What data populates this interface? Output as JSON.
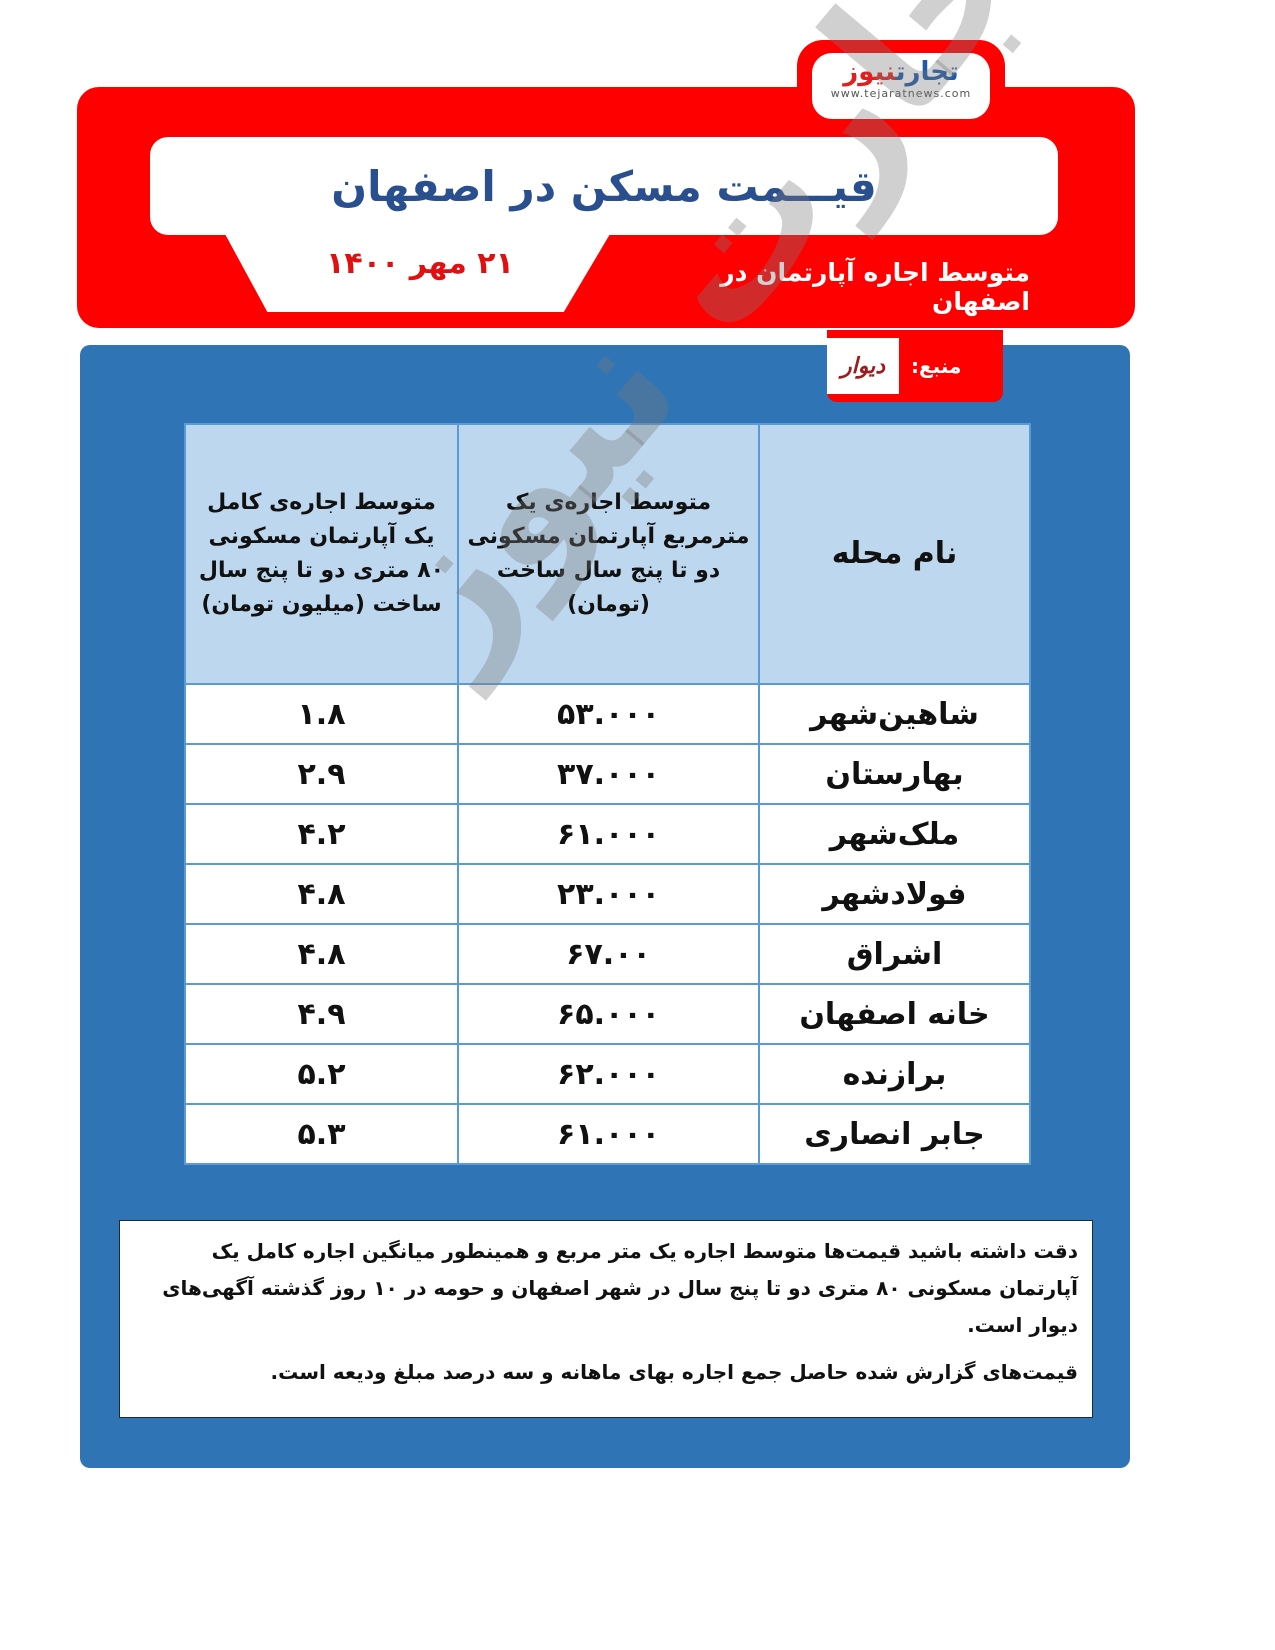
{
  "logo": {
    "brand_part1": "تجارت",
    "brand_part2": "نیوز",
    "url": "www.tejaratnews.com"
  },
  "header": {
    "title": "قیـــمت مسکن در اصفهان",
    "subtitle": "متوسط اجاره آپارتمان در اصفهان",
    "date": "۲۱ مهر ۱۴۰۰"
  },
  "source": {
    "label": "منبع:",
    "name": "دیوار"
  },
  "table": {
    "headers": [
      "نام محله",
      "متوسط اجاره‌ی یک مترمربع آپارتمان مسکونی دو تا پنج سال ساخت (تومان)",
      "متوسط اجاره‌ی کامل یک آپارتمان مسکونی ۸۰ متری دو تا پنج سال ساخت (میلیون تومان)"
    ],
    "rows": [
      [
        "شاهین‌شهر",
        "۵۳.۰۰۰",
        "۱.۸"
      ],
      [
        "بهارستان",
        "۳۷.۰۰۰",
        "۲.۹"
      ],
      [
        "ملک‌شهر",
        "۶۱.۰۰۰",
        "۴.۲"
      ],
      [
        "فولادشهر",
        "۲۳.۰۰۰",
        "۴.۸"
      ],
      [
        "اشراق",
        "۶۷.۰۰",
        "۴.۸"
      ],
      [
        "خانه اصفهان",
        "۶۵.۰۰۰",
        "۴.۹"
      ],
      [
        "برازنده",
        "۶۲.۰۰۰",
        "۵.۲"
      ],
      [
        "جابر انصاری",
        "۶۱.۰۰۰",
        "۵.۳"
      ]
    ]
  },
  "watermark": "تجارت نیوز",
  "notes": [
    "دقت داشته باشید قیمت‌ها متوسط اجاره یک متر مربع و همینطور میانگین اجاره کامل یک آپارتمان مسکونی ۸۰ متری دو تا پنج سال در شهر اصفهان و حومه در ۱۰ روز گذشته آگهی‌های دیوار است.",
    "قیمت‌های گزارش شده حاصل جمع اجاره بهای ماهانه و سه درصد مبلغ ودیعه است."
  ],
  "colors": {
    "red": "#ff0000",
    "blue": "#2f75b6",
    "header_cell": "#bdd7ee",
    "title": "#2a4f8f"
  }
}
